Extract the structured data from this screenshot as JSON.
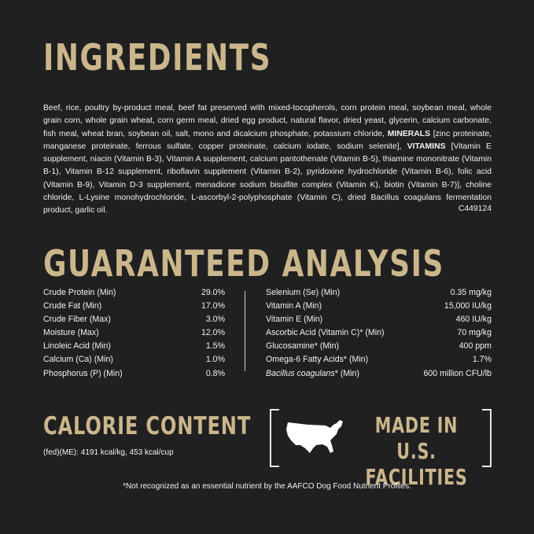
{
  "ingredients": {
    "title": "INGREDIENTS",
    "text_1": "Beef, rice, poultry by-product meal, beef fat preserved with mixed-tocopherols, corn protein meal, soybean meal, whole grain corn, whole grain wheat, corn germ meal, dried egg product, natural flavor, dried yeast, glycerin, calcium carbonate, fish meal, wheat bran, soybean oil, salt, mono and dicalcium phosphate, potassium chloride, ",
    "minerals_label": "MINERALS",
    "text_2": " [zinc proteinate, manganese proteinate, ferrous sulfate, copper proteinate, calcium iodate, sodium selenite], ",
    "vitamins_label": "VITAMINS",
    "text_3": " [Vitamin E supplement, niacin (Vitamin B-3), Vitamin A supplement, calcium pantothenate (Vitamin B-5), thiamine mononitrate (Vitamin B-1), Vitamin B-12 supplement, riboflavin supplement (Vitamin B-2), pyridoxine hydrochloride (Vitamin B-6), folic acid (Vitamin B-9), Vitamin D-3 supplement, menadione sodium bisulfite complex (Vitamin K), biotin (Vitamin B-7)], choline chloride, L-Lysine monohydrochloride, L-ascorbyl-2-polyphosphate (Vitamin C), dried Bacillus coagulans fermentation product, garlic oil.",
    "code": "C449124"
  },
  "analysis": {
    "title": "GUARANTEED ANALYSIS",
    "left": [
      {
        "label": "Crude Protein (Min)",
        "value": "29.0%"
      },
      {
        "label": "Crude Fat (Min)",
        "value": "17.0%"
      },
      {
        "label": "Crude Fiber (Max)",
        "value": "3.0%"
      },
      {
        "label": "Moisture (Max)",
        "value": "12.0%"
      },
      {
        "label": "Linoleic Acid (Min)",
        "value": "1.5%"
      },
      {
        "label": "Calcium (Ca) (Min)",
        "value": "1.0%"
      },
      {
        "label": "Phosphorus (P) (Min)",
        "value": "0.8%"
      }
    ],
    "right": [
      {
        "label": "Selenium (Se) (Min)",
        "value": "0.35 mg/kg"
      },
      {
        "label": "Vitamin A (Min)",
        "value": "15,000 IU/kg"
      },
      {
        "label": "Vitamin E (Min)",
        "value": "460 IU/kg"
      },
      {
        "label": "Ascorbic Acid (Vitamin C)* (Min)",
        "value": "70 mg/kg"
      },
      {
        "label": "Glucosamine* (Min)",
        "value": "400 ppm"
      },
      {
        "label": "Omega-6 Fatty Acids* (Min)",
        "value": "1.7%"
      },
      {
        "label_italic": "Bacillus coagulans",
        "label": "* (Min)",
        "value": "600 million CFU/lb"
      }
    ]
  },
  "calorie": {
    "title": "CALORIE CONTENT",
    "text": "(fed)(ME): 4191 kcal/kg, 453 kcal/cup"
  },
  "made_in": {
    "line1": "MADE IN U.S.",
    "line2": "FACILITIES",
    "icon": "usa-map-icon"
  },
  "footnote": "*Not recognized as an essential nutrient by the AAFCO Dog Food Nutrient Profiles.",
  "colors": {
    "background": "#202020",
    "accent_gold": "#cbb68c",
    "text": "#f2f2f2"
  }
}
